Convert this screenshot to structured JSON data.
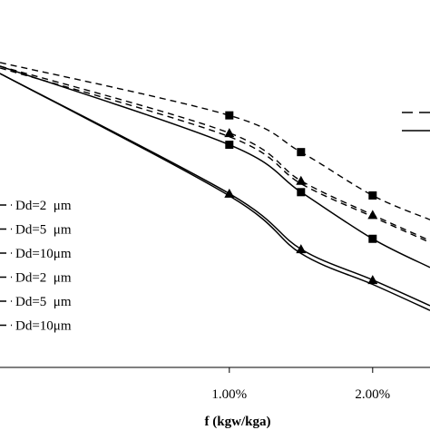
{
  "chart_data": {
    "type": "line",
    "title": "",
    "xlabel": "f (kgw/kga)",
    "ylabel": "",
    "x_ticks": [
      {
        "value": 1.0,
        "label": "1.00%"
      },
      {
        "value": 2.0,
        "label": "2.00%"
      }
    ],
    "xlim": [
      -0.6,
      2.4
    ],
    "ylim": [
      0,
      1
    ],
    "grid": false,
    "series": [
      {
        "id": "dashed-square",
        "style": "dashed",
        "marker": "square",
        "x": [
          -0.6,
          1.0,
          1.5,
          2.0,
          2.4
        ],
        "y": [
          0.83,
          0.686,
          0.586,
          0.468,
          0.402
        ],
        "markers_at": [
          1.0,
          1.5,
          2.0
        ]
      },
      {
        "id": "dashed-triangle",
        "style": "dashed",
        "marker": "triangle",
        "x": [
          -0.6,
          1.0,
          1.5,
          2.0,
          2.4
        ],
        "y": [
          0.82,
          0.638,
          0.508,
          0.415,
          0.345
        ],
        "markers_at": [
          1.0,
          1.5,
          2.0
        ]
      },
      {
        "id": "dashed-plain",
        "style": "dashed",
        "marker": "none",
        "x": [
          -0.6,
          1.0,
          1.5,
          2.0,
          2.4
        ],
        "y": [
          0.815,
          0.628,
          0.5,
          0.41,
          0.34
        ],
        "markers_at": []
      },
      {
        "id": "solid-square",
        "style": "solid",
        "marker": "square",
        "x": [
          -0.6,
          1.0,
          1.5,
          2.0,
          2.4
        ],
        "y": [
          0.82,
          0.606,
          0.477,
          0.35,
          0.272
        ],
        "markers_at": [
          1.0,
          1.5,
          2.0
        ]
      },
      {
        "id": "solid-triangle",
        "style": "solid",
        "marker": "triangle",
        "x": [
          -0.6,
          1.0,
          1.5,
          2.0,
          2.4
        ],
        "y": [
          0.8,
          0.473,
          0.322,
          0.238,
          0.168
        ],
        "markers_at": [
          1.0,
          1.5,
          2.0
        ]
      },
      {
        "id": "solid-plain",
        "style": "solid",
        "marker": "none",
        "x": [
          -0.6,
          1.0,
          1.5,
          2.0,
          2.4
        ],
        "y": [
          0.8,
          0.467,
          0.31,
          0.226,
          0.155
        ],
        "markers_at": []
      }
    ],
    "legend_left": {
      "placement": "left",
      "entries": [
        {
          "style": "dashed",
          "label": "Dd=2  μm"
        },
        {
          "style": "dashed",
          "label": "Dd=5  μm"
        },
        {
          "style": "dashed",
          "label": "Dd=10μm"
        },
        {
          "style": "dashed",
          "label": "Dd=2  μm"
        },
        {
          "style": "dashed",
          "label": "Dd=5  μm"
        },
        {
          "style": "dashed",
          "label": "Dd=10μm"
        }
      ]
    },
    "legend_right": {
      "placement": "top-right",
      "entries": [
        {
          "style": "dashed",
          "label": ""
        },
        {
          "style": "solid",
          "label": ""
        }
      ]
    },
    "colors": {
      "line": "#000000",
      "background": "#ffffff"
    }
  }
}
